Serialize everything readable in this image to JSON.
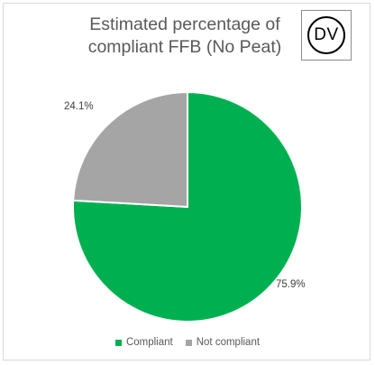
{
  "badge": {
    "text": "DV"
  },
  "chart_data": {
    "type": "pie",
    "title": "Estimated percentage of compliant FFB (No Peat)",
    "title_lines": [
      "Estimated percentage of",
      "compliant FFB (No Peat)"
    ],
    "slices": [
      {
        "label": "Compliant",
        "value": 75.9,
        "value_label": "75.9%",
        "color": "#00b050"
      },
      {
        "label": "Not compliant",
        "value": 24.1,
        "value_label": "24.1%",
        "color": "#a5a5a5"
      }
    ],
    "start_angle_deg": 0,
    "direction": "clockwise",
    "legend_position": "bottom"
  }
}
